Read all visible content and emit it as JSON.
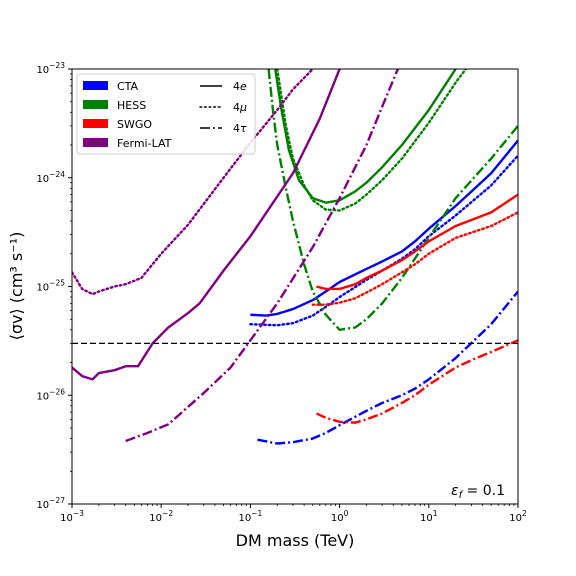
{
  "chart_data": {
    "type": "line",
    "title": "",
    "xlabel": "DM mass (TeV)",
    "ylabel": "⟨σv⟩ (cm³ s⁻¹)",
    "x_scale": "log",
    "y_scale": "log",
    "xlim": [
      0.001,
      100
    ],
    "ylim": [
      1e-27,
      1e-23
    ],
    "x_ticks": [
      {
        "value": 0.001,
        "base": "10",
        "exp": "−3"
      },
      {
        "value": 0.01,
        "base": "10",
        "exp": "−2"
      },
      {
        "value": 0.1,
        "base": "10",
        "exp": "−1"
      },
      {
        "value": 1,
        "base": "10",
        "exp": "0"
      },
      {
        "value": 10,
        "base": "10",
        "exp": "1"
      },
      {
        "value": 100,
        "base": "10",
        "exp": "2"
      }
    ],
    "y_ticks": [
      {
        "value": 1e-27,
        "base": "10",
        "exp": "−27"
      },
      {
        "value": 1e-26,
        "base": "10",
        "exp": "−26"
      },
      {
        "value": 1e-25,
        "base": "10",
        "exp": "−25"
      },
      {
        "value": 1e-24,
        "base": "10",
        "exp": "−24"
      },
      {
        "value": 1e-23,
        "base": "10",
        "exp": "−23"
      }
    ],
    "grid": false,
    "legend_position": "top-left",
    "legend_colors": [
      {
        "name": "CTA",
        "color": "#0000ff"
      },
      {
        "name": "HESS",
        "color": "#008000"
      },
      {
        "name": "SWGO",
        "color": "#ff0000"
      },
      {
        "name": "Fermi-LAT",
        "color": "#800080"
      }
    ],
    "legend_styles": [
      {
        "name": "4e",
        "base": "4",
        "sym": "e",
        "style": "solid"
      },
      {
        "name": "4μ",
        "base": "4",
        "sym": "μ",
        "style": "dotted"
      },
      {
        "name": "4τ",
        "base": "4",
        "sym": "τ",
        "style": "dashdot"
      }
    ],
    "annotation": {
      "text": "ε_f = 0.1",
      "sym": "ε",
      "sub": "f",
      "rest": " = 0.1",
      "position": "bottom-right"
    },
    "reference_line": {
      "y": 3e-26,
      "style": "dashed",
      "color": "#000000"
    },
    "series": [
      {
        "instrument": "CTA",
        "channel": "4e",
        "color": "#0000ff",
        "style": "solid",
        "x": [
          0.1,
          0.15,
          0.2,
          0.3,
          0.5,
          0.7,
          1,
          2,
          3,
          5,
          7,
          10,
          20,
          50,
          100
        ],
        "y": [
          5.5e-26,
          5.4e-26,
          5.6e-26,
          6.2e-26,
          7.5e-26,
          9e-26,
          1.1e-25,
          1.45e-25,
          1.7e-25,
          2.1e-25,
          2.6e-25,
          3.4e-25,
          5.5e-25,
          1.1e-24,
          2.2e-24
        ]
      },
      {
        "instrument": "CTA",
        "channel": "4μ",
        "color": "#0000ff",
        "style": "dotted",
        "x": [
          0.1,
          0.2,
          0.3,
          0.5,
          0.7,
          1,
          2,
          3,
          5,
          7,
          10,
          20,
          50,
          100
        ],
        "y": [
          4.5e-26,
          4.4e-26,
          4.6e-26,
          5.4e-26,
          6.5e-26,
          8e-26,
          1.15e-25,
          1.4e-25,
          1.8e-25,
          2.2e-25,
          2.9e-25,
          4.5e-25,
          8.5e-25,
          1.6e-24
        ]
      },
      {
        "instrument": "CTA",
        "channel": "4τ",
        "color": "#0000ff",
        "style": "dashdot",
        "x": [
          0.12,
          0.2,
          0.3,
          0.5,
          0.7,
          1,
          2,
          3,
          5,
          7,
          10,
          20,
          50,
          100
        ],
        "y": [
          3.9e-27,
          3.6e-27,
          3.7e-27,
          4e-27,
          4.5e-27,
          5.3e-27,
          7.2e-27,
          8.5e-27,
          1e-26,
          1.15e-26,
          1.4e-26,
          2.2e-26,
          4.5e-26,
          9e-26
        ]
      },
      {
        "instrument": "HESS",
        "channel": "4e",
        "color": "#008000",
        "style": "solid",
        "x": [
          0.19,
          0.22,
          0.27,
          0.35,
          0.5,
          0.7,
          1,
          1.5,
          2,
          3,
          5,
          10,
          20
        ],
        "y": [
          1e-23,
          4.5e-24,
          1.8e-24,
          9.5e-25,
          6.5e-25,
          5.9e-25,
          6.2e-25,
          7.5e-25,
          9e-25,
          1.25e-24,
          2e-24,
          4.2e-24,
          1e-23
        ]
      },
      {
        "instrument": "HESS",
        "channel": "4μ",
        "color": "#008000",
        "style": "dotted",
        "x": [
          0.2,
          0.25,
          0.3,
          0.4,
          0.5,
          0.7,
          1,
          1.5,
          2,
          3,
          5,
          10,
          20,
          26
        ],
        "y": [
          1e-23,
          3e-24,
          1.5e-24,
          8.5e-25,
          6.2e-25,
          5.1e-25,
          5e-25,
          5.8e-25,
          7e-25,
          9.5e-25,
          1.5e-24,
          3.2e-24,
          7.5e-24,
          1e-23
        ]
      },
      {
        "instrument": "HESS",
        "channel": "4τ",
        "color": "#008000",
        "style": "dashdot",
        "x": [
          0.16,
          0.18,
          0.2,
          0.25,
          0.3,
          0.4,
          0.5,
          0.7,
          1,
          1.5,
          2,
          3,
          5,
          10,
          20,
          50,
          100
        ],
        "y": [
          1e-23,
          4e-24,
          2e-24,
          8e-25,
          4e-25,
          1.6e-25,
          9e-26,
          5.5e-26,
          4e-26,
          4.2e-26,
          5e-26,
          7e-26,
          1.2e-25,
          2.8e-25,
          6.5e-25,
          1.5e-24,
          3e-24
        ]
      },
      {
        "instrument": "SWGO",
        "channel": "4e",
        "color": "#ff0000",
        "style": "solid",
        "x": [
          0.55,
          0.7,
          1,
          1.5,
          2,
          3,
          5,
          7,
          10,
          20,
          50,
          100
        ],
        "y": [
          1e-25,
          9.5e-26,
          9.5e-26,
          1.05e-25,
          1.2e-25,
          1.4e-25,
          1.75e-25,
          2.1e-25,
          2.6e-25,
          3.6e-25,
          4.8e-25,
          7e-25
        ]
      },
      {
        "instrument": "SWGO",
        "channel": "4μ",
        "color": "#ff0000",
        "style": "dotted",
        "x": [
          0.5,
          0.7,
          1,
          1.5,
          2,
          3,
          5,
          7,
          10,
          20,
          50,
          100
        ],
        "y": [
          6.8e-26,
          6.8e-26,
          7.1e-26,
          7.8e-26,
          8.8e-26,
          1.05e-25,
          1.35e-25,
          1.6e-25,
          2e-25,
          2.8e-25,
          3.6e-25,
          4.8e-25
        ]
      },
      {
        "instrument": "SWGO",
        "channel": "4τ",
        "color": "#ff0000",
        "style": "dashdot",
        "x": [
          0.55,
          0.7,
          1,
          1.5,
          2,
          3,
          5,
          7,
          10,
          20,
          30,
          50,
          100
        ],
        "y": [
          6.8e-27,
          6.2e-27,
          5.7e-27,
          5.6e-27,
          6e-27,
          6.8e-27,
          8.5e-27,
          1e-26,
          1.25e-26,
          1.8e-26,
          2.1e-26,
          2.5e-26,
          3.2e-26
        ]
      },
      {
        "instrument": "Fermi-LAT",
        "channel": "4e",
        "color": "#800080",
        "style": "solid",
        "x": [
          0.001,
          0.0013,
          0.0017,
          0.002,
          0.003,
          0.004,
          0.0055,
          0.008,
          0.012,
          0.02,
          0.027,
          0.05,
          0.1,
          0.3,
          0.6,
          1.0
        ],
        "y": [
          1.8e-26,
          1.5e-26,
          1.4e-26,
          1.6e-26,
          1.7e-26,
          1.85e-26,
          1.85e-26,
          3e-26,
          4.2e-26,
          5.7e-26,
          7e-26,
          1.4e-25,
          2.9e-25,
          1.1e-24,
          3.5e-24,
          1e-23
        ]
      },
      {
        "instrument": "Fermi-LAT",
        "channel": "4μ",
        "color": "#800080",
        "style": "dotted",
        "x": [
          0.001,
          0.0013,
          0.0017,
          0.002,
          0.003,
          0.004,
          0.006,
          0.01,
          0.02,
          0.05,
          0.1,
          0.2,
          0.3,
          0.5
        ],
        "y": [
          1.35e-25,
          9.5e-26,
          8.5e-26,
          9e-26,
          1e-25,
          1.05e-25,
          1.2e-25,
          2e-25,
          3.7e-25,
          1e-24,
          2.1e-24,
          4.2e-24,
          6.5e-24,
          1e-23
        ]
      },
      {
        "instrument": "Fermi-LAT",
        "channel": "4τ",
        "color": "#800080",
        "style": "dashdot",
        "x": [
          0.004,
          0.007,
          0.012,
          0.03,
          0.06,
          0.1,
          0.2,
          0.5,
          1,
          2,
          3,
          4.5
        ],
        "y": [
          3.8e-27,
          4.5e-27,
          5.4e-27,
          1.05e-26,
          1.8e-26,
          3.2e-26,
          7e-26,
          2.3e-25,
          6.5e-25,
          2e-24,
          4.5e-24,
          1e-23
        ]
      }
    ]
  }
}
